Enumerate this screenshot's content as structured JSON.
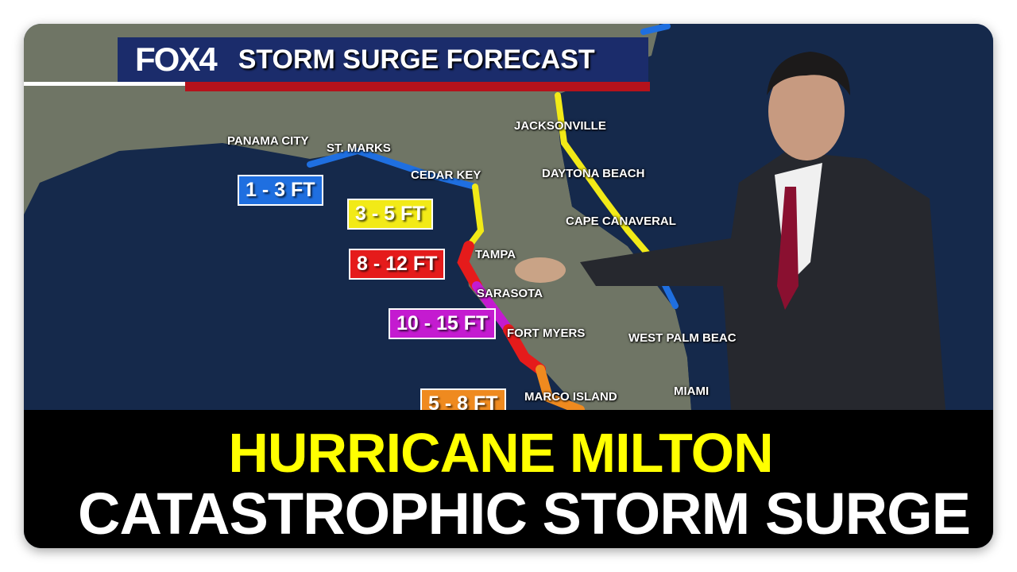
{
  "banner": {
    "logo": "FOX4",
    "title": "STORM SURGE FORECAST"
  },
  "cities": [
    "PANAMA CITY",
    "ST. MARKS",
    "CEDAR KEY",
    "JACKSONVILLE",
    "DAYTONA BEACH",
    "CAPE CANAVERAL",
    "TAMPA",
    "SARASOTA",
    "FORT MYERS",
    "WEST PALM BEAC",
    "MIAMI",
    "MARCO ISLAND"
  ],
  "surge_labels": [
    {
      "text": "1 - 3 FT",
      "color": "#1f6fe0"
    },
    {
      "text": "3 - 5 FT",
      "color": "#f2ea17"
    },
    {
      "text": "8 - 12 FT",
      "color": "#e51b1b"
    },
    {
      "text": "10 - 15 FT",
      "color": "#c41bd0"
    },
    {
      "text": "5 - 8 FT",
      "color": "#ef8a1f"
    }
  ],
  "headline": {
    "line1": "HURRICANE MILTON",
    "line2": "CATASTROPHIC STORM SURGE"
  },
  "colors": {
    "ocean": "#15294b",
    "land": "#6f7565",
    "banner": "#1b2c6b",
    "banner_red": "#b5121b",
    "headline_yellow": "#ffff00"
  }
}
